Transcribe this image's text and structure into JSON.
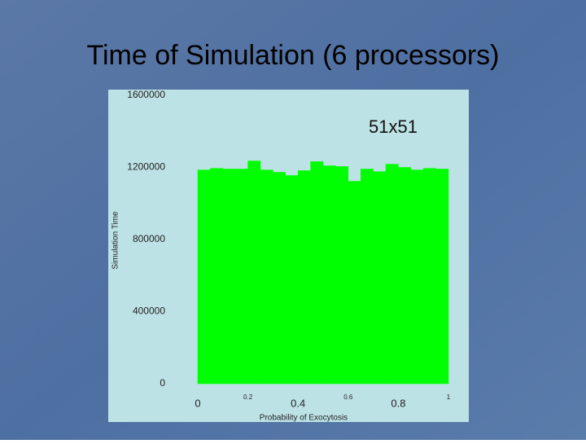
{
  "slide_title": "Time of Simulation (6 processors)",
  "chart_data": {
    "type": "histogram",
    "title": "51x51",
    "x_label": "Probability of Exocytosis",
    "y_label": "Simulation Time",
    "bins": [
      0,
      0.05,
      0.1,
      0.15,
      0.2,
      0.25,
      0.3,
      0.35,
      0.4,
      0.45,
      0.5,
      0.55,
      0.6,
      0.65,
      0.7,
      0.75,
      0.8,
      0.85,
      0.9,
      0.95,
      1
    ],
    "values": [
      1186000,
      1195000,
      1191000,
      1191000,
      1236000,
      1186000,
      1173000,
      1155000,
      1182000,
      1232000,
      1209000,
      1205000,
      1123000,
      1191000,
      1177000,
      1218000,
      1200000,
      1186000,
      1195000,
      1191000
    ],
    "color": "#00ff00",
    "xlim": [
      0,
      1
    ],
    "xticks": [
      0,
      0.2,
      0.4,
      0.6,
      0.8,
      1
    ],
    "ylim": [
      0,
      1600000
    ],
    "yticks": [
      0,
      400000,
      800000,
      1200000,
      1600000
    ]
  }
}
